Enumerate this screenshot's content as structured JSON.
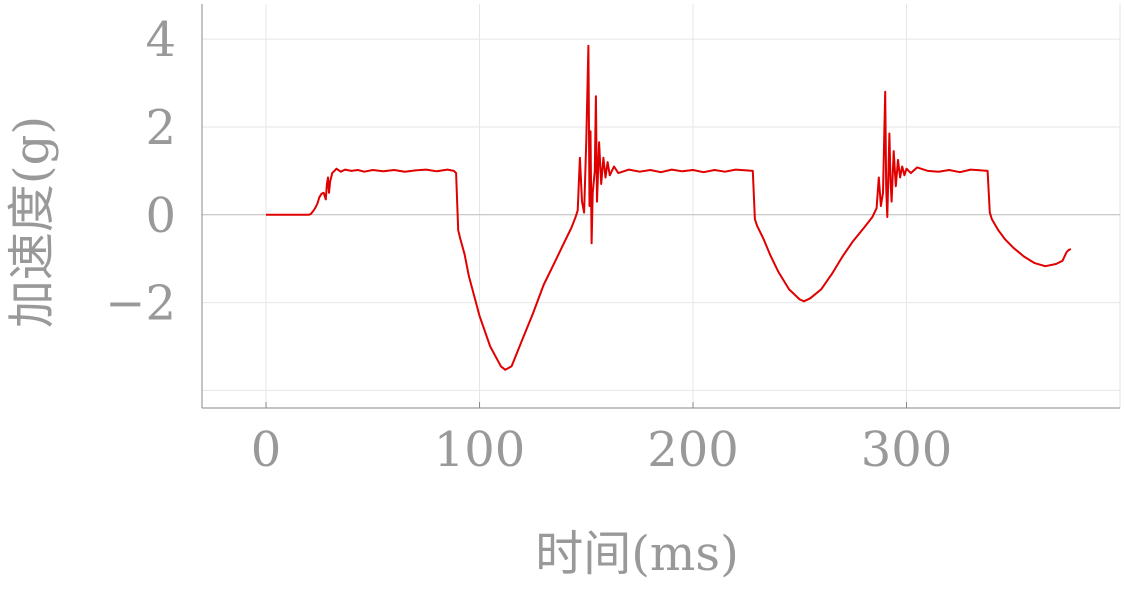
{
  "chart_data": {
    "type": "line",
    "title": "",
    "xlabel": "时间(ms)",
    "ylabel": "加速度(g)",
    "xlim": [
      -30,
      400
    ],
    "ylim": [
      -4.4,
      4.8
    ],
    "xticks": [
      0,
      100,
      200,
      300
    ],
    "xtick_labels": [
      "0",
      "100",
      "200",
      "300"
    ],
    "yticks": [
      4,
      2,
      0,
      -2
    ],
    "ytick_labels": [
      "4",
      "2",
      "0",
      "−2"
    ],
    "minor_yticks": [
      -4
    ],
    "grid": true,
    "colors": {
      "series": "#e00000",
      "grid": "#e6e6e6",
      "zero_line": "#bbbbbb",
      "axis": "#888888",
      "text": "#999999"
    },
    "series": [
      {
        "values_xy": [
          [
            0,
            0
          ],
          [
            10,
            0
          ],
          [
            20,
            0
          ],
          [
            21,
            0.02
          ],
          [
            22,
            0.08
          ],
          [
            23,
            0.15
          ],
          [
            24,
            0.25
          ],
          [
            25,
            0.4
          ],
          [
            26,
            0.48
          ],
          [
            27,
            0.5
          ],
          [
            28,
            0.35
          ],
          [
            28.5,
            0.7
          ],
          [
            29,
            0.85
          ],
          [
            29.5,
            0.5
          ],
          [
            30,
            0.75
          ],
          [
            31,
            0.95
          ],
          [
            32,
            1.0
          ],
          [
            33,
            1.05
          ],
          [
            35,
            0.98
          ],
          [
            37,
            1.03
          ],
          [
            40,
            1.0
          ],
          [
            43,
            1.02
          ],
          [
            46,
            0.98
          ],
          [
            50,
            1.02
          ],
          [
            55,
            0.99
          ],
          [
            60,
            1.02
          ],
          [
            65,
            0.98
          ],
          [
            70,
            1.01
          ],
          [
            75,
            1.03
          ],
          [
            80,
            0.99
          ],
          [
            85,
            1.03
          ],
          [
            88,
            1.0
          ],
          [
            89,
            0.95
          ],
          [
            90,
            -0.35
          ],
          [
            91,
            -0.55
          ],
          [
            93,
            -0.9
          ],
          [
            95,
            -1.4
          ],
          [
            100,
            -2.3
          ],
          [
            105,
            -3.0
          ],
          [
            110,
            -3.45
          ],
          [
            112,
            -3.53
          ],
          [
            115,
            -3.45
          ],
          [
            120,
            -2.85
          ],
          [
            125,
            -2.25
          ],
          [
            130,
            -1.6
          ],
          [
            135,
            -1.1
          ],
          [
            140,
            -0.6
          ],
          [
            143,
            -0.3
          ],
          [
            145,
            -0.05
          ],
          [
            146,
            0.1
          ],
          [
            147,
            1.3
          ],
          [
            148,
            0.3
          ],
          [
            149,
            0.05
          ],
          [
            150,
            1.7
          ],
          [
            151,
            3.85
          ],
          [
            151.5,
            0.2
          ],
          [
            152,
            1.9
          ],
          [
            152.5,
            -0.65
          ],
          [
            153,
            0.5
          ],
          [
            154,
            1.0
          ],
          [
            154.5,
            2.7
          ],
          [
            155,
            0.3
          ],
          [
            156,
            1.65
          ],
          [
            157,
            0.7
          ],
          [
            158,
            1.3
          ],
          [
            159,
            0.85
          ],
          [
            160,
            1.2
          ],
          [
            161,
            0.9
          ],
          [
            163,
            1.1
          ],
          [
            165,
            0.95
          ],
          [
            170,
            1.03
          ],
          [
            175,
            0.98
          ],
          [
            180,
            1.02
          ],
          [
            185,
            0.97
          ],
          [
            190,
            1.03
          ],
          [
            195,
            0.99
          ],
          [
            200,
            1.02
          ],
          [
            205,
            0.97
          ],
          [
            210,
            1.02
          ],
          [
            215,
            0.98
          ],
          [
            220,
            1.03
          ],
          [
            225,
            1.01
          ],
          [
            228,
            1.0
          ],
          [
            229,
            -0.1
          ],
          [
            230,
            -0.25
          ],
          [
            233,
            -0.55
          ],
          [
            236,
            -0.9
          ],
          [
            240,
            -1.3
          ],
          [
            245,
            -1.7
          ],
          [
            250,
            -1.93
          ],
          [
            252,
            -1.97
          ],
          [
            255,
            -1.9
          ],
          [
            260,
            -1.7
          ],
          [
            265,
            -1.35
          ],
          [
            270,
            -0.95
          ],
          [
            275,
            -0.6
          ],
          [
            280,
            -0.3
          ],
          [
            284,
            -0.05
          ],
          [
            286,
            0.15
          ],
          [
            287,
            0.85
          ],
          [
            288,
            0.2
          ],
          [
            289,
            0.5
          ],
          [
            290,
            2.8
          ],
          [
            290.5,
            0.6
          ],
          [
            291,
            -0.05
          ],
          [
            292,
            1.85
          ],
          [
            292.5,
            0.8
          ],
          [
            293,
            0.3
          ],
          [
            294,
            1.45
          ],
          [
            295,
            0.65
          ],
          [
            296,
            1.25
          ],
          [
            297,
            0.85
          ],
          [
            298,
            1.1
          ],
          [
            299,
            0.9
          ],
          [
            300,
            1.05
          ],
          [
            302,
            0.95
          ],
          [
            305,
            1.08
          ],
          [
            310,
            1.0
          ],
          [
            315,
            0.98
          ],
          [
            320,
            1.02
          ],
          [
            325,
            0.97
          ],
          [
            330,
            1.03
          ],
          [
            335,
            1.01
          ],
          [
            338,
            1.0
          ],
          [
            339,
            0.05
          ],
          [
            340,
            -0.1
          ],
          [
            343,
            -0.35
          ],
          [
            346,
            -0.55
          ],
          [
            350,
            -0.75
          ],
          [
            355,
            -0.95
          ],
          [
            360,
            -1.1
          ],
          [
            365,
            -1.17
          ],
          [
            370,
            -1.12
          ],
          [
            373,
            -1.05
          ],
          [
            375,
            -0.85
          ],
          [
            376,
            -0.8
          ],
          [
            377,
            -0.78
          ]
        ]
      }
    ]
  }
}
